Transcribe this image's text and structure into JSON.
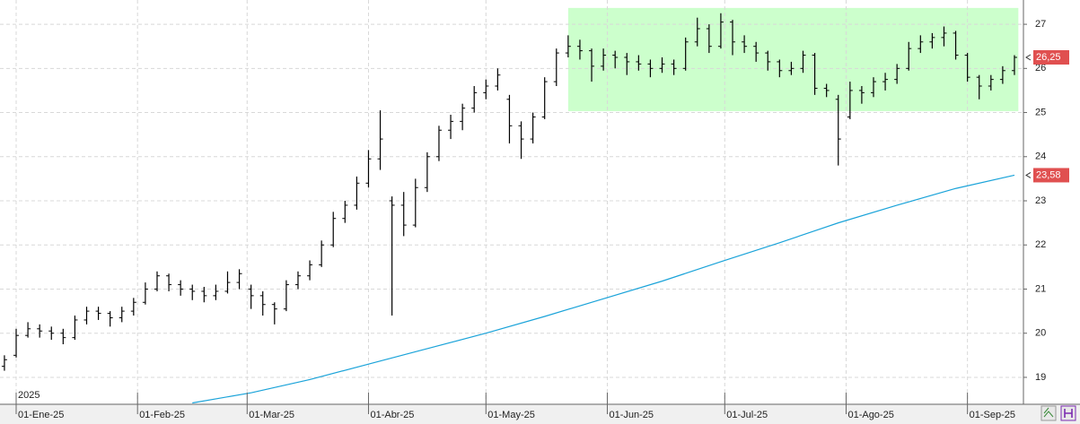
{
  "chart_data": {
    "type": "ohlc",
    "annotation": "2025",
    "xlim": [
      -4.13,
      257.3
    ],
    "xticks": [
      {
        "value": 0,
        "label": "01-Ene-25"
      },
      {
        "value": 31,
        "label": "01-Feb-25"
      },
      {
        "value": 59,
        "label": "01-Mar-25"
      },
      {
        "value": 90,
        "label": "01-Abr-25"
      },
      {
        "value": 120,
        "label": "01-May-25"
      },
      {
        "value": 151,
        "label": "01-Jun-25"
      },
      {
        "value": 181,
        "label": "01-Jul-25"
      },
      {
        "value": 212,
        "label": "01-Ago-25"
      },
      {
        "value": 243,
        "label": "01-Sep-25"
      }
    ],
    "ylim": [
      18.41,
      27.55
    ],
    "yticks": [
      19,
      20,
      21,
      22,
      23,
      24,
      25,
      26,
      27
    ],
    "grid": true,
    "bars": {
      "color": "#000000",
      "x": [
        -3,
        0,
        3,
        6,
        9,
        12,
        15,
        18,
        21,
        24,
        27,
        30,
        33,
        36,
        39,
        42,
        45,
        48,
        51,
        54,
        57,
        60,
        63,
        66,
        69,
        72,
        75,
        78,
        81,
        84,
        87,
        90,
        93,
        96,
        99,
        102,
        105,
        108,
        111,
        114,
        117,
        120,
        123,
        126,
        129,
        132,
        135,
        138,
        141,
        144,
        147,
        150,
        153,
        156,
        159,
        162,
        165,
        168,
        171,
        174,
        177,
        180,
        183,
        186,
        189,
        192,
        195,
        198,
        201,
        204,
        207,
        210,
        213,
        216,
        219,
        222,
        225,
        228,
        231,
        234,
        237,
        240,
        243,
        246,
        249,
        252,
        255
      ],
      "open": [
        19.25,
        19.5,
        19.95,
        20.1,
        20.05,
        20.0,
        19.9,
        20.3,
        20.5,
        20.45,
        20.35,
        20.5,
        20.7,
        21.0,
        21.3,
        21.1,
        21.0,
        20.95,
        20.85,
        20.95,
        21.15,
        21.0,
        20.85,
        20.65,
        20.55,
        21.1,
        21.3,
        21.55,
        22.0,
        22.6,
        22.9,
        23.4,
        23.95,
        23.0,
        22.9,
        22.45,
        23.3,
        24.0,
        24.6,
        24.8,
        25.1,
        25.45,
        25.6,
        25.3,
        24.7,
        24.4,
        24.9,
        25.7,
        26.35,
        26.5,
        26.4,
        26.05,
        26.3,
        26.25,
        26.15,
        26.1,
        26.0,
        26.1,
        26.0,
        26.6,
        26.9,
        26.5,
        27.05,
        26.6,
        26.5,
        26.35,
        26.15,
        25.95,
        26.0,
        26.3,
        25.55,
        25.3,
        24.9,
        25.5,
        25.45,
        25.7,
        25.75,
        26.0,
        26.45,
        26.6,
        26.7,
        26.8,
        26.3,
        25.8,
        25.6,
        25.75,
        25.95
      ],
      "high": [
        19.5,
        20.1,
        20.25,
        20.2,
        20.15,
        20.1,
        20.4,
        20.6,
        20.6,
        20.5,
        20.6,
        20.8,
        21.15,
        21.4,
        21.35,
        21.2,
        21.1,
        21.05,
        21.1,
        21.4,
        21.45,
        21.1,
        20.95,
        20.7,
        21.2,
        21.4,
        21.65,
        22.1,
        22.75,
        23.0,
        23.55,
        24.15,
        25.05,
        23.1,
        23.2,
        23.5,
        24.1,
        24.7,
        24.95,
        25.2,
        25.6,
        25.75,
        26.0,
        25.4,
        24.8,
        25.0,
        25.8,
        26.45,
        26.75,
        26.65,
        26.45,
        26.45,
        26.4,
        26.35,
        26.3,
        26.2,
        26.25,
        26.2,
        26.7,
        27.15,
        27.0,
        27.25,
        27.1,
        26.75,
        26.6,
        26.4,
        26.2,
        26.15,
        26.4,
        26.35,
        25.65,
        25.4,
        25.7,
        25.6,
        25.8,
        25.9,
        26.1,
        26.6,
        26.75,
        26.8,
        26.95,
        26.85,
        26.35,
        25.85,
        25.85,
        26.05,
        26.3
      ],
      "low": [
        19.15,
        19.45,
        19.9,
        19.9,
        19.85,
        19.75,
        19.85,
        20.2,
        20.3,
        20.15,
        20.25,
        20.4,
        20.65,
        20.95,
        20.95,
        20.85,
        20.75,
        20.7,
        20.75,
        20.9,
        21.0,
        20.55,
        20.4,
        20.2,
        20.5,
        21.0,
        21.2,
        21.5,
        21.95,
        22.5,
        22.8,
        23.3,
        23.7,
        20.4,
        22.2,
        22.4,
        23.2,
        23.9,
        24.4,
        24.6,
        25.0,
        25.3,
        25.5,
        24.3,
        23.95,
        24.3,
        24.85,
        25.6,
        26.25,
        26.2,
        25.7,
        25.95,
        26.0,
        25.85,
        25.95,
        25.8,
        25.9,
        25.85,
        25.95,
        26.5,
        26.35,
        26.45,
        26.3,
        26.35,
        26.15,
        25.95,
        25.8,
        25.85,
        25.9,
        25.4,
        25.35,
        23.8,
        24.85,
        25.2,
        25.35,
        25.5,
        25.65,
        25.95,
        26.35,
        26.45,
        26.5,
        26.2,
        25.7,
        25.3,
        25.5,
        25.65,
        25.85
      ],
      "close": [
        19.4,
        19.95,
        20.1,
        20.05,
        20.0,
        19.9,
        20.3,
        20.5,
        20.45,
        20.35,
        20.5,
        20.7,
        21.0,
        21.3,
        21.1,
        21.0,
        20.95,
        20.85,
        20.95,
        21.15,
        21.35,
        20.85,
        20.65,
        20.55,
        21.1,
        21.3,
        21.55,
        22.0,
        22.6,
        22.9,
        23.4,
        23.95,
        24.4,
        22.9,
        22.45,
        23.3,
        24.0,
        24.6,
        24.8,
        25.1,
        25.45,
        25.6,
        25.85,
        24.7,
        24.4,
        24.9,
        25.7,
        26.35,
        26.5,
        26.4,
        26.05,
        26.3,
        26.25,
        26.15,
        26.1,
        26.0,
        26.1,
        26.0,
        26.6,
        26.9,
        26.5,
        27.05,
        26.6,
        26.5,
        26.35,
        26.15,
        25.95,
        26.0,
        26.3,
        25.55,
        25.5,
        24.4,
        25.5,
        25.45,
        25.7,
        25.75,
        26.0,
        26.45,
        26.6,
        26.7,
        26.8,
        26.3,
        25.8,
        25.6,
        25.75,
        25.95,
        26.25
      ]
    },
    "series": [
      {
        "color": "#1aa3d9",
        "x": [
          45,
          60,
          75,
          90,
          105,
          120,
          135,
          150,
          165,
          180,
          195,
          210,
          225,
          240,
          255
        ],
        "values": [
          18.42,
          18.65,
          18.95,
          19.3,
          19.65,
          20.0,
          20.38,
          20.78,
          21.18,
          21.62,
          22.05,
          22.5,
          22.9,
          23.28,
          23.58
        ]
      }
    ],
    "price_tags": [
      {
        "value": 26.25,
        "label": "26,25"
      },
      {
        "value": 23.58,
        "label": "23,58"
      }
    ],
    "tag_color": "#e05050",
    "highlight": {
      "xlim": [
        141,
        256
      ],
      "ylim": [
        25.03,
        27.37
      ],
      "color": "#ccffcc"
    }
  }
}
